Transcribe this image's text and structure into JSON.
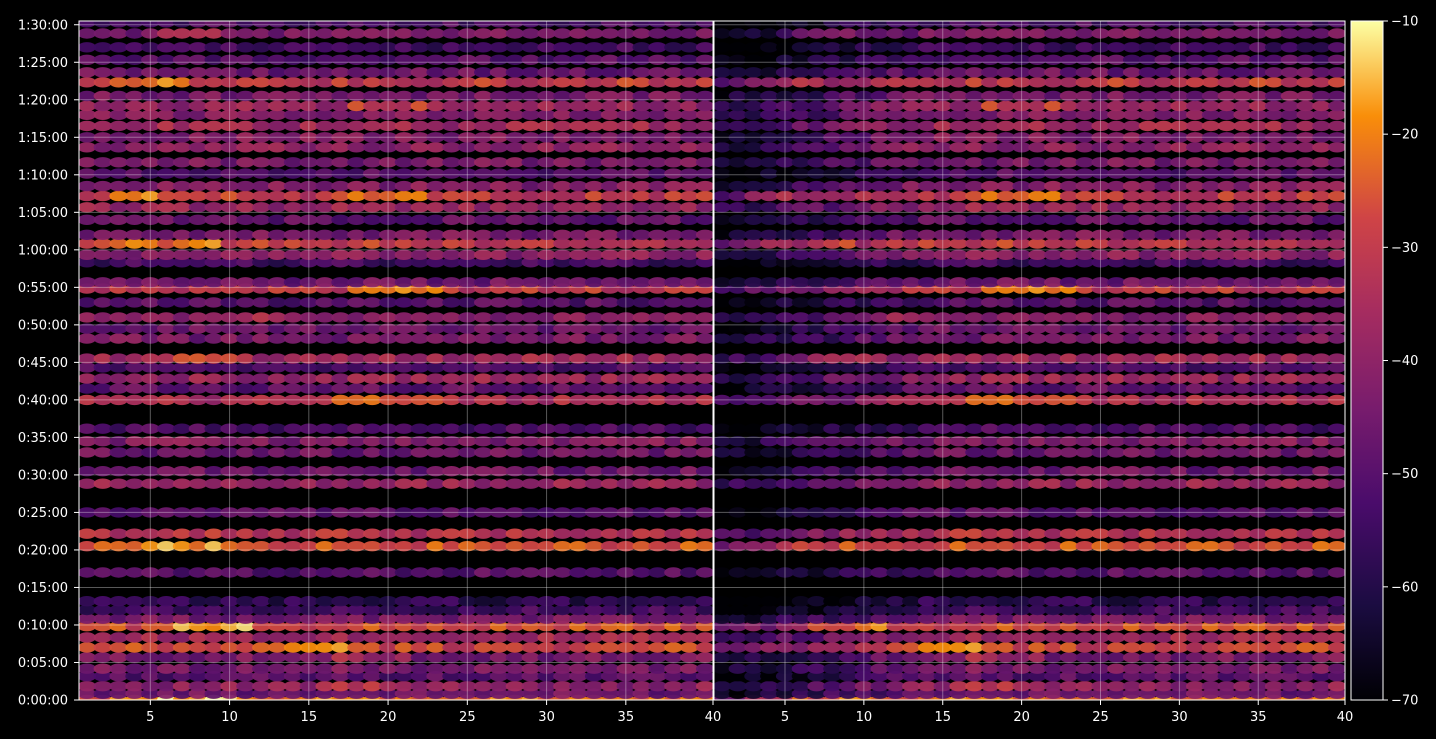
{
  "chart_data": {
    "type": "heatmap",
    "title": "",
    "xlabel": "",
    "ylabel": "",
    "panels": [
      {
        "x_range": [
          1,
          40
        ],
        "x_ticks": [
          "5",
          "10",
          "15",
          "20",
          "25",
          "30",
          "35",
          "40"
        ],
        "mirror_of_left": false
      },
      {
        "x_range": [
          1,
          40
        ],
        "x_ticks": [
          "5",
          "10",
          "15",
          "20",
          "25",
          "30",
          "35",
          "40"
        ],
        "mirror_of_left": true
      }
    ],
    "y_range_seconds": [
      0,
      5430
    ],
    "y_ticks": [
      "0:00:00",
      "0:05:00",
      "0:10:00",
      "0:15:00",
      "0:20:00",
      "0:25:00",
      "0:30:00",
      "0:35:00",
      "0:40:00",
      "0:45:00",
      "0:50:00",
      "0:55:00",
      "1:00:00",
      "1:05:00",
      "1:10:00",
      "1:15:00",
      "1:20:00",
      "1:25:00",
      "1:30:00"
    ],
    "grid": true,
    "colormap": "inferno",
    "colorbar": {
      "range": [
        -70,
        -10
      ],
      "ticks": [
        "−70",
        "−60",
        "−50",
        "−40",
        "−30",
        "−20",
        "−10"
      ]
    },
    "rows": [
      {
        "t": 0,
        "level": -22,
        "hot": [
          5,
          8
        ]
      },
      {
        "t": 50,
        "level": -46
      },
      {
        "t": 110,
        "level": -40,
        "hot": [
          18
        ]
      },
      {
        "t": 190,
        "level": -50
      },
      {
        "t": 250,
        "level": -44
      },
      {
        "t": 340,
        "level": -44,
        "hot": [
          19
        ]
      },
      {
        "t": 420,
        "level": -28,
        "hot": [
          14,
          16
        ]
      },
      {
        "t": 500,
        "level": -36
      },
      {
        "t": 590,
        "level": -26,
        "hot": [
          9
        ]
      },
      {
        "t": 650,
        "level": -44
      },
      {
        "t": 720,
        "level": -54
      },
      {
        "t": 790,
        "level": -58
      },
      {
        "t": 1020,
        "level": -50
      },
      {
        "t": 1230,
        "level": -26,
        "hot": [
          4,
          7
        ]
      },
      {
        "t": 1330,
        "level": -32
      },
      {
        "t": 1500,
        "level": -50
      },
      {
        "t": 1730,
        "level": -38
      },
      {
        "t": 1830,
        "level": -46
      },
      {
        "t": 1980,
        "level": -46
      },
      {
        "t": 2070,
        "level": -42
      },
      {
        "t": 2170,
        "level": -52
      },
      {
        "t": 2400,
        "level": -34,
        "hot": [
          19,
          22
        ]
      },
      {
        "t": 2490,
        "level": -48
      },
      {
        "t": 2570,
        "level": -38
      },
      {
        "t": 2660,
        "level": -52
      },
      {
        "t": 2730,
        "level": -36,
        "hot": [
          8
        ]
      },
      {
        "t": 2890,
        "level": -44
      },
      {
        "t": 2970,
        "level": -46
      },
      {
        "t": 3060,
        "level": -42,
        "hot": [
          11
        ]
      },
      {
        "t": 3180,
        "level": -50
      },
      {
        "t": 3290,
        "level": -30,
        "hot": [
          20,
          22
        ]
      },
      {
        "t": 3340,
        "level": -46
      },
      {
        "t": 3500,
        "level": -54
      },
      {
        "t": 3560,
        "level": -40
      },
      {
        "t": 3650,
        "level": -30,
        "hot": [
          4,
          7
        ]
      },
      {
        "t": 3720,
        "level": -44
      },
      {
        "t": 3840,
        "level": -48
      },
      {
        "t": 3940,
        "level": -38
      },
      {
        "t": 4030,
        "level": -30,
        "hot": [
          20,
          5
        ]
      },
      {
        "t": 4110,
        "level": -42
      },
      {
        "t": 4210,
        "level": -50
      },
      {
        "t": 4300,
        "level": -44
      },
      {
        "t": 4420,
        "level": -40
      },
      {
        "t": 4500,
        "level": -42
      },
      {
        "t": 4590,
        "level": -36
      },
      {
        "t": 4680,
        "level": -42
      },
      {
        "t": 4750,
        "level": -38,
        "hot": [
          20
        ]
      },
      {
        "t": 4830,
        "level": -44
      },
      {
        "t": 4940,
        "level": -30,
        "hot": [
          5
        ]
      },
      {
        "t": 5020,
        "level": -46
      },
      {
        "t": 5120,
        "level": -50
      },
      {
        "t": 5220,
        "level": -54
      },
      {
        "t": 5330,
        "level": -44,
        "hot": [
          8
        ]
      },
      {
        "t": 5420,
        "level": -52
      }
    ]
  }
}
